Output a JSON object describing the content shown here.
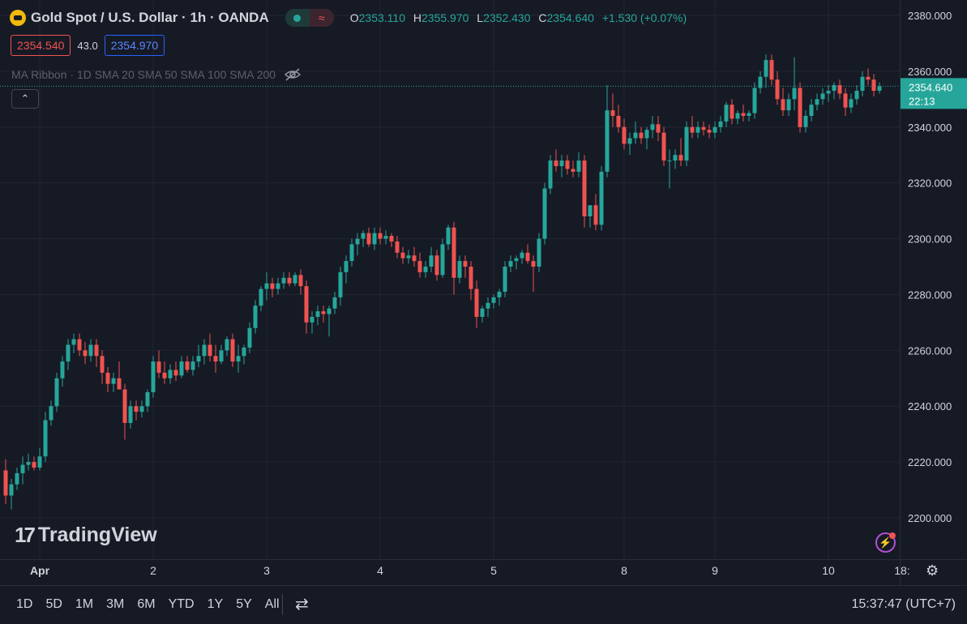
{
  "header": {
    "symbol_title": "Gold Spot / U.S. Dollar · 1h · OANDA",
    "wave_glyph": "≈",
    "open_label": "O",
    "open_value": "2353.110",
    "high_label": "H",
    "high_value": "2355.970",
    "low_label": "L",
    "low_value": "2352.430",
    "close_label": "C",
    "close_value": "2354.640",
    "change": "+1.530 (+0.07%)"
  },
  "trade": {
    "sell_price": "2354.540",
    "spread": "43.0",
    "buy_price": "2354.970"
  },
  "indicator": {
    "label": "MA Ribbon · 1D SMA 20 SMA 50 SMA 100 SMA 200"
  },
  "collapse_glyph": "⌃",
  "brand": {
    "mark": "17",
    "name": "TradingView"
  },
  "colors": {
    "up": "#26a69a",
    "down": "#ef5350",
    "background": "#161a25",
    "grid": "#232632",
    "axis_text": "#d1d4dc"
  },
  "chart_data": {
    "type": "candlestick",
    "y_ticks": [
      2200,
      2220,
      2240,
      2260,
      2280,
      2300,
      2320,
      2340,
      2360,
      2380
    ],
    "y_tick_labels": [
      "2200.000",
      "2220.000",
      "2240.000",
      "2260.000",
      "2280.000",
      "2300.000",
      "2320.000",
      "2340.000",
      "2360.000",
      "2380.000"
    ],
    "ylim": [
      2187,
      2385
    ],
    "x_ticks": [
      {
        "label": "Apr",
        "bar": 6
      },
      {
        "label": "2",
        "bar": 26
      },
      {
        "label": "3",
        "bar": 46
      },
      {
        "label": "4",
        "bar": 66
      },
      {
        "label": "5",
        "bar": 86
      },
      {
        "label": "8",
        "bar": 109
      },
      {
        "label": "9",
        "bar": 125
      },
      {
        "label": "10",
        "bar": 145
      },
      {
        "label": "18:",
        "bar": 158
      }
    ],
    "last_price": {
      "value": 2354.64,
      "label": "2354.640",
      "countdown": "22:13"
    },
    "candles": [
      [
        2217,
        2221,
        2205,
        2208
      ],
      [
        2208,
        2214,
        2203,
        2212
      ],
      [
        2212,
        2218,
        2210,
        2216
      ],
      [
        2216,
        2222,
        2212,
        2219
      ],
      [
        2219,
        2223,
        2217,
        2220
      ],
      [
        2220,
        2222,
        2217,
        2218
      ],
      [
        2218,
        2225,
        2217,
        2222
      ],
      [
        2222,
        2238,
        2220,
        2235
      ],
      [
        2235,
        2242,
        2233,
        2240
      ],
      [
        2240,
        2252,
        2238,
        2250
      ],
      [
        2250,
        2258,
        2247,
        2256
      ],
      [
        2256,
        2264,
        2253,
        2262
      ],
      [
        2262,
        2266,
        2259,
        2264
      ],
      [
        2264,
        2266,
        2258,
        2260
      ],
      [
        2260,
        2263,
        2255,
        2258
      ],
      [
        2258,
        2264,
        2256,
        2262
      ],
      [
        2262,
        2264,
        2254,
        2258
      ],
      [
        2258,
        2260,
        2248,
        2252
      ],
      [
        2252,
        2254,
        2245,
        2248
      ],
      [
        2248,
        2252,
        2245,
        2250
      ],
      [
        2250,
        2256,
        2246,
        2246
      ],
      [
        2246,
        2248,
        2228,
        2234
      ],
      [
        2234,
        2242,
        2232,
        2240
      ],
      [
        2240,
        2242,
        2235,
        2238
      ],
      [
        2238,
        2242,
        2236,
        2240
      ],
      [
        2240,
        2246,
        2238,
        2245
      ],
      [
        2245,
        2258,
        2243,
        2256
      ],
      [
        2256,
        2260,
        2250,
        2252
      ],
      [
        2252,
        2256,
        2248,
        2250
      ],
      [
        2250,
        2255,
        2248,
        2253
      ],
      [
        2253,
        2256,
        2249,
        2251
      ],
      [
        2251,
        2258,
        2250,
        2256
      ],
      [
        2256,
        2258,
        2252,
        2253
      ],
      [
        2253,
        2258,
        2251,
        2256
      ],
      [
        2256,
        2262,
        2254,
        2258
      ],
      [
        2258,
        2264,
        2255,
        2262
      ],
      [
        2262,
        2266,
        2256,
        2258
      ],
      [
        2258,
        2262,
        2252,
        2256
      ],
      [
        2256,
        2262,
        2255,
        2260
      ],
      [
        2260,
        2265,
        2258,
        2264
      ],
      [
        2264,
        2266,
        2254,
        2256
      ],
      [
        2256,
        2262,
        2252,
        2258
      ],
      [
        2258,
        2262,
        2255,
        2261
      ],
      [
        2261,
        2270,
        2259,
        2268
      ],
      [
        2268,
        2278,
        2266,
        2276
      ],
      [
        2276,
        2283,
        2274,
        2282
      ],
      [
        2282,
        2288,
        2278,
        2284
      ],
      [
        2284,
        2286,
        2279,
        2282
      ],
      [
        2282,
        2286,
        2280,
        2284
      ],
      [
        2284,
        2288,
        2282,
        2286
      ],
      [
        2286,
        2288,
        2283,
        2284
      ],
      [
        2284,
        2288,
        2283,
        2287
      ],
      [
        2287,
        2289,
        2280,
        2283
      ],
      [
        2283,
        2285,
        2266,
        2270
      ],
      [
        2270,
        2274,
        2266,
        2272
      ],
      [
        2272,
        2276,
        2269,
        2274
      ],
      [
        2274,
        2276,
        2270,
        2273
      ],
      [
        2273,
        2276,
        2265,
        2275
      ],
      [
        2275,
        2281,
        2273,
        2279
      ],
      [
        2279,
        2290,
        2276,
        2288
      ],
      [
        2288,
        2294,
        2284,
        2292
      ],
      [
        2292,
        2300,
        2290,
        2298
      ],
      [
        2298,
        2302,
        2294,
        2300
      ],
      [
        2300,
        2303,
        2297,
        2302
      ],
      [
        2302,
        2304,
        2297,
        2298
      ],
      [
        2298,
        2304,
        2296,
        2302
      ],
      [
        2302,
        2304,
        2298,
        2300
      ],
      [
        2300,
        2303,
        2298,
        2301
      ],
      [
        2301,
        2302,
        2297,
        2299
      ],
      [
        2299,
        2301,
        2293,
        2295
      ],
      [
        2295,
        2297,
        2291,
        2293
      ],
      [
        2293,
        2296,
        2291,
        2294
      ],
      [
        2294,
        2297,
        2290,
        2292
      ],
      [
        2292,
        2295,
        2286,
        2288
      ],
      [
        2288,
        2292,
        2286,
        2290
      ],
      [
        2290,
        2297,
        2288,
        2294
      ],
      [
        2294,
        2296,
        2285,
        2287
      ],
      [
        2287,
        2300,
        2286,
        2298
      ],
      [
        2298,
        2305,
        2296,
        2304
      ],
      [
        2304,
        2306,
        2280,
        2286
      ],
      [
        2286,
        2294,
        2284,
        2292
      ],
      [
        2292,
        2294,
        2286,
        2290
      ],
      [
        2290,
        2292,
        2278,
        2282
      ],
      [
        2282,
        2285,
        2268,
        2272
      ],
      [
        2272,
        2276,
        2270,
        2275
      ],
      [
        2275,
        2279,
        2272,
        2277
      ],
      [
        2277,
        2280,
        2275,
        2279
      ],
      [
        2279,
        2282,
        2276,
        2281
      ],
      [
        2281,
        2292,
        2279,
        2290
      ],
      [
        2290,
        2294,
        2288,
        2292
      ],
      [
        2292,
        2294,
        2289,
        2293
      ],
      [
        2293,
        2296,
        2291,
        2295
      ],
      [
        2295,
        2298,
        2291,
        2292
      ],
      [
        2292,
        2294,
        2281,
        2290
      ],
      [
        2290,
        2302,
        2288,
        2300
      ],
      [
        2300,
        2320,
        2298,
        2318
      ],
      [
        2318,
        2330,
        2316,
        2328
      ],
      [
        2328,
        2332,
        2324,
        2326
      ],
      [
        2326,
        2330,
        2322,
        2328
      ],
      [
        2328,
        2330,
        2323,
        2325
      ],
      [
        2325,
        2328,
        2322,
        2324
      ],
      [
        2324,
        2331,
        2322,
        2328
      ],
      [
        2328,
        2330,
        2304,
        2308
      ],
      [
        2308,
        2312,
        2304,
        2312
      ],
      [
        2312,
        2316,
        2303,
        2305
      ],
      [
        2305,
        2326,
        2303,
        2324
      ],
      [
        2324,
        2355,
        2322,
        2346
      ],
      [
        2346,
        2352,
        2340,
        2344
      ],
      [
        2344,
        2348,
        2338,
        2340
      ],
      [
        2340,
        2343,
        2332,
        2334
      ],
      [
        2334,
        2338,
        2330,
        2336
      ],
      [
        2336,
        2342,
        2334,
        2338
      ],
      [
        2338,
        2340,
        2334,
        2336
      ],
      [
        2336,
        2340,
        2332,
        2339
      ],
      [
        2339,
        2344,
        2336,
        2341
      ],
      [
        2341,
        2344,
        2335,
        2338
      ],
      [
        2338,
        2340,
        2326,
        2328
      ],
      [
        2328,
        2332,
        2318,
        2328
      ],
      [
        2328,
        2332,
        2325,
        2330
      ],
      [
        2330,
        2336,
        2326,
        2328
      ],
      [
        2328,
        2342,
        2326,
        2340
      ],
      [
        2340,
        2344,
        2336,
        2338
      ],
      [
        2338,
        2342,
        2336,
        2340
      ],
      [
        2340,
        2342,
        2337,
        2339
      ],
      [
        2339,
        2341,
        2336,
        2338
      ],
      [
        2338,
        2342,
        2336,
        2340
      ],
      [
        2340,
        2344,
        2338,
        2342
      ],
      [
        2342,
        2349,
        2340,
        2348
      ],
      [
        2348,
        2350,
        2341,
        2343
      ],
      [
        2343,
        2346,
        2341,
        2345
      ],
      [
        2345,
        2348,
        2342,
        2344
      ],
      [
        2344,
        2346,
        2342,
        2345
      ],
      [
        2345,
        2356,
        2343,
        2354
      ],
      [
        2354,
        2360,
        2352,
        2358
      ],
      [
        2358,
        2366,
        2354,
        2364
      ],
      [
        2364,
        2366,
        2355,
        2357
      ],
      [
        2357,
        2360,
        2348,
        2350
      ],
      [
        2350,
        2354,
        2344,
        2346
      ],
      [
        2346,
        2352,
        2344,
        2350
      ],
      [
        2350,
        2365,
        2346,
        2354
      ],
      [
        2354,
        2356,
        2338,
        2340
      ],
      [
        2340,
        2346,
        2338,
        2344
      ],
      [
        2344,
        2350,
        2342,
        2348
      ],
      [
        2348,
        2352,
        2346,
        2350
      ],
      [
        2350,
        2354,
        2348,
        2352
      ],
      [
        2352,
        2355,
        2349,
        2353
      ],
      [
        2353,
        2356,
        2350,
        2355
      ],
      [
        2355,
        2357,
        2350,
        2352
      ],
      [
        2352,
        2354,
        2344,
        2347
      ],
      [
        2347,
        2352,
        2345,
        2350
      ],
      [
        2350,
        2355,
        2348,
        2353
      ],
      [
        2353,
        2360,
        2351,
        2358
      ],
      [
        2358,
        2361,
        2355,
        2357
      ],
      [
        2357,
        2359,
        2351,
        2353
      ],
      [
        2353,
        2356,
        2352,
        2354.64
      ]
    ]
  },
  "bottom_bar": {
    "periods": [
      "1D",
      "5D",
      "1M",
      "3M",
      "6M",
      "YTD",
      "1Y",
      "5Y",
      "All"
    ],
    "range_icon": "calendar-range-icon",
    "range_glyph": "⇄",
    "clock": "15:37:47 (UTC+7)"
  }
}
